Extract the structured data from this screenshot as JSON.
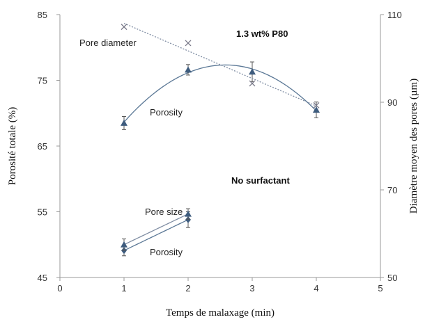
{
  "chart_data": {
    "type": "line",
    "xlabel": "Temps de malaxage (min)",
    "ylabel_left": "Porosité totale (%)",
    "ylabel_right": "Diamètre moyen des pores (µm)",
    "xlim": [
      0,
      5
    ],
    "ylim_left": [
      45,
      85
    ],
    "ylim_right": [
      50,
      110
    ],
    "xticks": [
      0,
      1,
      2,
      3,
      4,
      5
    ],
    "yticks_left": [
      45,
      55,
      65,
      75,
      85
    ],
    "yticks_right": [
      50,
      70,
      90,
      110
    ],
    "grid": false,
    "annotations": {
      "p80": "1.3 wt% P80",
      "no_surfactant": "No surfactant",
      "pore_diameter": "Pore diameter",
      "porosity_p80": "Porosity",
      "pore_size": "Pore size",
      "porosity_none": "Porosity"
    },
    "series": [
      {
        "axis": "left",
        "color": "#5b7896",
        "marker": "triangle",
        "fit": "quadratic",
        "x": [
          1,
          2,
          3,
          4
        ],
        "values": [
          68.5,
          76.6,
          76.3,
          70.5
        ],
        "error": [
          1.0,
          0.8,
          1.5,
          1.2
        ]
      },
      {
        "axis": "right",
        "color": "#7f8da3",
        "marker": "x",
        "fit": "linear",
        "x": [
          1,
          2,
          3,
          4
        ],
        "values": [
          107.2,
          103.5,
          94.3,
          89.3
        ]
      },
      {
        "axis": "left",
        "color": "#5b7896",
        "marker": "diamond",
        "fit": "linear",
        "x": [
          1,
          2
        ],
        "values": [
          49.1,
          53.8
        ],
        "error": [
          0.8,
          1.2
        ]
      },
      {
        "axis": "right",
        "color": "#7f8da3",
        "marker": "triangle",
        "fit": "linear",
        "x": [
          1,
          2
        ],
        "values": [
          57.5,
          64.5
        ],
        "error": [
          1.3,
          1.2
        ]
      }
    ]
  }
}
